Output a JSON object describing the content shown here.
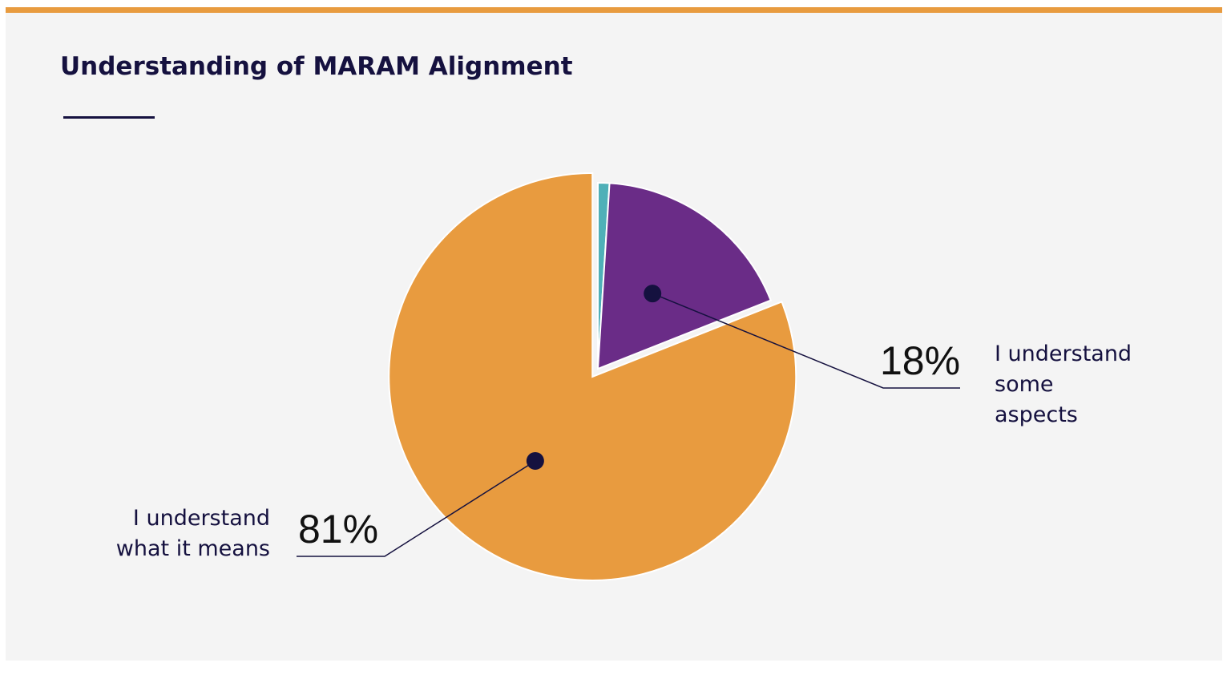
{
  "title": "Understanding of MARAM Alignment",
  "colors": {
    "accent": "#e89b3f",
    "text": "#15113f",
    "background": "#f4f4f4"
  },
  "chart_data": {
    "type": "pie",
    "title": "Understanding of MARAM Alignment",
    "slices": [
      {
        "label": "",
        "value": 1,
        "color": "#4fb0b8"
      },
      {
        "label": "I understand some aspects",
        "value": 18,
        "display": "18%",
        "color": "#6a2c87"
      },
      {
        "label": "I understand what it means",
        "value": 81,
        "display": "81%",
        "color": "#e89b3f"
      }
    ],
    "legend": "none",
    "callouts": [
      {
        "slice": 1,
        "value_text": "18%",
        "label_lines": [
          "I understand",
          "some",
          "aspects"
        ],
        "side": "right"
      },
      {
        "slice": 2,
        "value_text": "81%",
        "label_lines": [
          "I understand",
          "what it means"
        ],
        "side": "left"
      }
    ]
  }
}
